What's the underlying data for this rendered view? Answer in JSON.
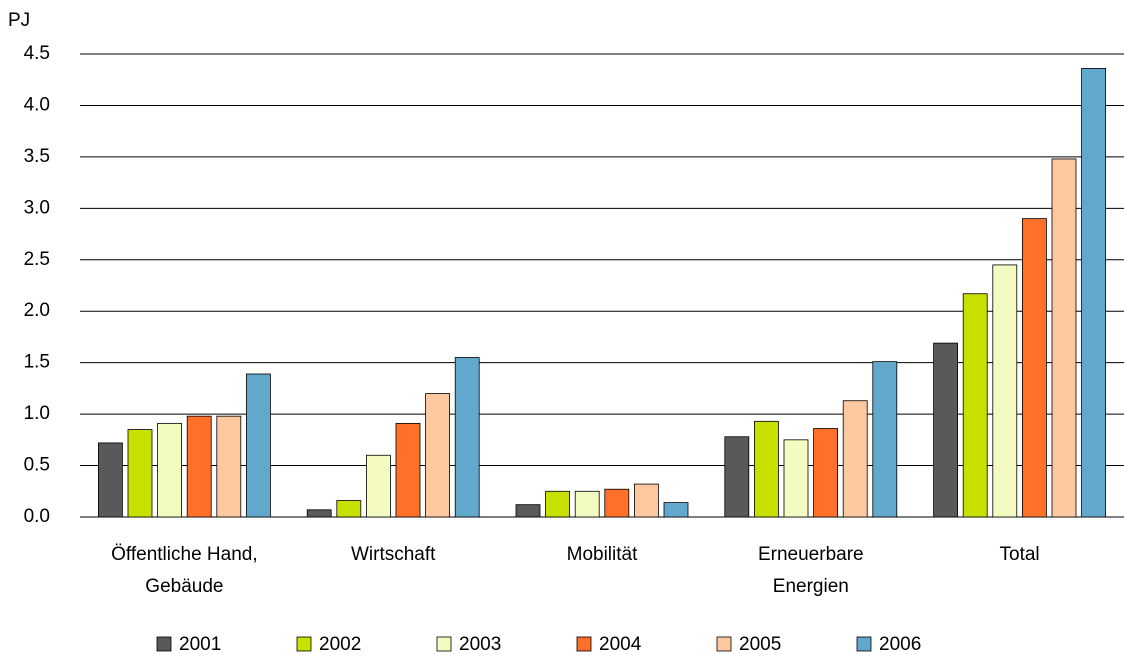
{
  "chart_data": {
    "type": "bar",
    "y_label": "PJ",
    "categories": [
      [
        "Öffentliche Hand,",
        "Gebäude"
      ],
      [
        "Wirtschaft"
      ],
      [
        "Mobilität"
      ],
      [
        "Erneuerbare",
        "Energien"
      ],
      [
        "Total"
      ]
    ],
    "series": [
      {
        "name": "2001",
        "color": "#595959",
        "values": [
          0.72,
          0.07,
          0.12,
          0.78,
          1.69
        ]
      },
      {
        "name": "2002",
        "color": "#c8e000",
        "values": [
          0.85,
          0.16,
          0.25,
          0.93,
          2.17
        ]
      },
      {
        "name": "2003",
        "color": "#f4fbc0",
        "values": [
          0.91,
          0.6,
          0.25,
          0.75,
          2.45
        ]
      },
      {
        "name": "2004",
        "color": "#ff7028",
        "values": [
          0.98,
          0.91,
          0.27,
          0.86,
          2.9
        ]
      },
      {
        "name": "2005",
        "color": "#fcc8a0",
        "values": [
          0.98,
          1.2,
          0.32,
          1.13,
          3.48
        ]
      },
      {
        "name": "2006",
        "color": "#62a8cc",
        "values": [
          1.39,
          1.55,
          0.14,
          1.51,
          4.36
        ]
      }
    ],
    "ylim": [
      0,
      4.5
    ],
    "yticks": [
      {
        "value": 0,
        "label": "0.0"
      },
      0.5,
      {
        "value": 1,
        "label": "1.0"
      },
      1.5,
      {
        "value": 2,
        "label": "2.0"
      },
      2.5,
      {
        "value": 3,
        "label": "3.0"
      },
      3.5,
      {
        "value": 4,
        "label": "4.0"
      },
      4.5
    ],
    "grid": true
  }
}
